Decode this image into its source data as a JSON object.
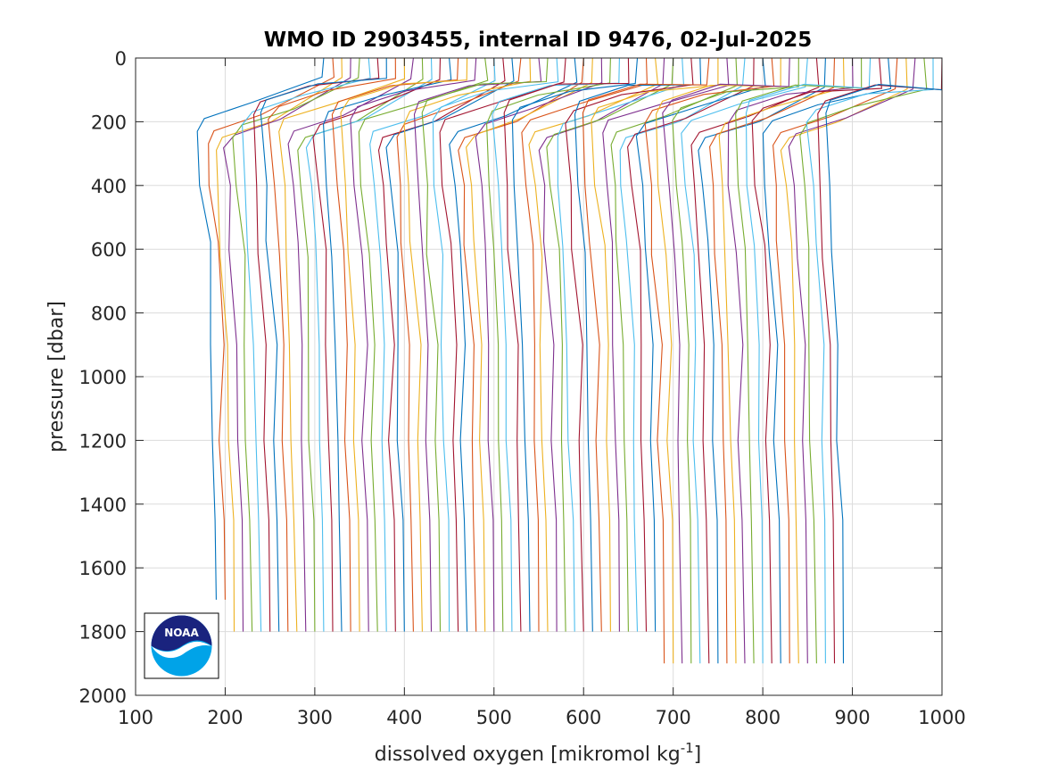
{
  "chart_data": {
    "type": "line",
    "title": "WMO ID 2903455, internal ID 9476, 02-Jul-2025",
    "xlabel_main": "dissolved oxygen [mikromol kg",
    "xlabel_sup": "-1",
    "xlabel_end": "]",
    "ylabel": "pressure [dbar]",
    "xlim": [
      100,
      1000
    ],
    "ylim": [
      0,
      2000
    ],
    "y_reversed": true,
    "grid": true,
    "xticks": [
      "100",
      "200",
      "300",
      "400",
      "500",
      "600",
      "700",
      "800",
      "900",
      "1000"
    ],
    "yticks": [
      "0",
      "200",
      "400",
      "600",
      "800",
      "1000",
      "1200",
      "1400",
      "1600",
      "1800",
      "2000"
    ],
    "series_colors": [
      "#0072bd",
      "#d95319",
      "#edb120",
      "#7e2f8e",
      "#77ac30",
      "#4dbeee",
      "#a2142f"
    ],
    "profile_offset_step": 10,
    "deep_values": [
      190,
      200,
      210,
      220,
      230,
      240,
      250,
      260,
      270,
      280,
      290,
      300,
      310,
      320,
      330,
      340,
      350,
      360,
      370,
      380,
      390,
      400,
      410,
      420,
      430,
      440,
      450,
      460,
      470,
      480,
      490,
      500,
      510,
      520,
      530,
      540,
      550,
      560,
      570,
      580,
      590,
      600,
      610,
      620,
      630,
      640,
      650,
      660,
      670,
      680,
      690,
      700,
      710,
      720,
      730,
      740,
      750,
      760,
      770,
      780,
      790,
      800,
      810,
      820,
      830,
      840,
      850,
      860,
      870,
      880,
      890
    ],
    "surface_values": [
      310,
      320,
      330,
      340,
      350,
      360,
      370,
      380,
      390,
      400,
      410,
      420,
      430,
      440,
      450,
      460,
      470,
      480,
      490,
      500,
      510,
      520,
      530,
      540,
      550,
      560,
      570,
      580,
      590,
      600,
      610,
      620,
      630,
      640,
      650,
      660,
      670,
      680,
      690,
      700,
      710,
      720,
      730,
      740,
      750,
      760,
      770,
      780,
      790,
      800,
      810,
      820,
      830,
      840,
      850,
      860,
      870,
      880,
      890,
      900,
      910,
      920,
      930,
      940,
      950,
      960,
      970,
      980,
      990,
      1000,
      1000
    ],
    "min_values": [
      170,
      180,
      190,
      200,
      210,
      220,
      230,
      240,
      250,
      260,
      270,
      280,
      290,
      300,
      310,
      320,
      330,
      340,
      350,
      360,
      370,
      380,
      390,
      400,
      410,
      420,
      430,
      440,
      450,
      460,
      470,
      480,
      490,
      500,
      510,
      520,
      530,
      540,
      550,
      560,
      570,
      580,
      590,
      600,
      610,
      620,
      630,
      640,
      650,
      660,
      670,
      680,
      690,
      700,
      710,
      720,
      730,
      740,
      750,
      760,
      770,
      780,
      790,
      800,
      810,
      820,
      830,
      840,
      850,
      860,
      870
    ],
    "max_pressure": [
      1700,
      1700,
      1800,
      1800,
      1800,
      1800,
      1800,
      1800,
      1800,
      1800,
      1800,
      1800,
      1800,
      1800,
      1800,
      1800,
      1800,
      1800,
      1800,
      1800,
      1800,
      1800,
      1800,
      1800,
      1800,
      1800,
      1800,
      1800,
      1800,
      1800,
      1800,
      1800,
      1800,
      1800,
      1800,
      1800,
      1800,
      1800,
      1800,
      1800,
      1800,
      1800,
      1800,
      1800,
      1800,
      1800,
      1800,
      1800,
      1800,
      1800,
      1900,
      1900,
      1900,
      1900,
      1900,
      1900,
      1900,
      1900,
      1900,
      1900,
      1900,
      1900,
      1900,
      1900,
      1900,
      1900,
      1900,
      1900,
      1900,
      1900,
      1900
    ]
  },
  "logo": {
    "text": "NOAA",
    "colors": {
      "navy": "#1a237e",
      "blue": "#00a3e8",
      "white": "#ffffff"
    }
  }
}
